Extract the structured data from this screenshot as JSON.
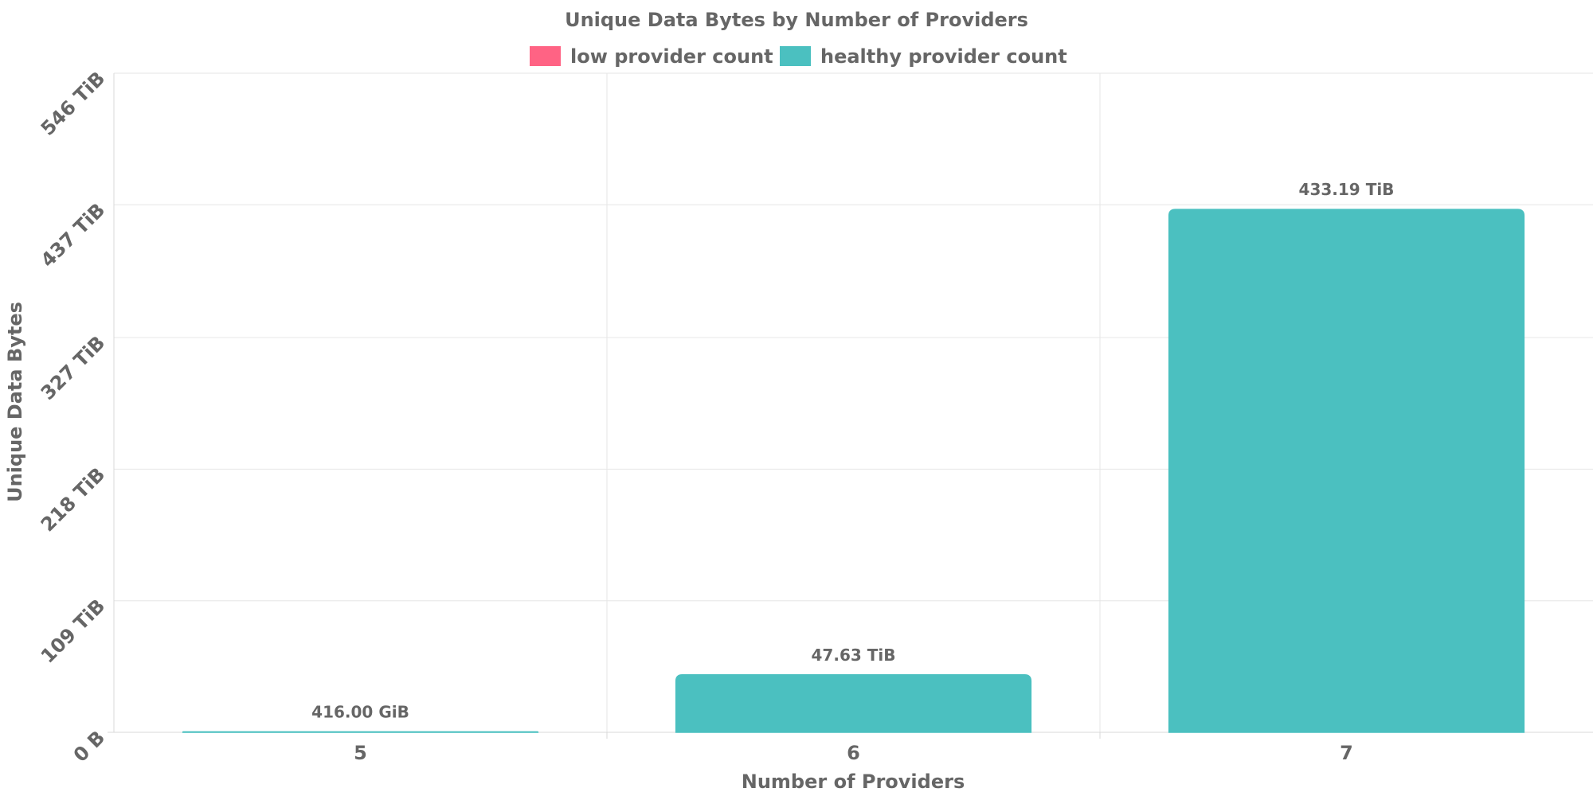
{
  "chart_data": {
    "type": "bar",
    "title": "Unique Data Bytes by Number of Providers",
    "xlabel": "Number of Providers",
    "ylabel": "Unique Data Bytes",
    "categories": [
      "5",
      "6",
      "7"
    ],
    "series": [
      {
        "name": "low provider count",
        "color": "#FF6384",
        "values": [
          0,
          0,
          0
        ]
      },
      {
        "name": "healthy provider count",
        "color": "#4BC0C0",
        "values": [
          0.406,
          47.63,
          433.19
        ]
      }
    ],
    "value_unit": "TiB",
    "data_labels": [
      "416.00 GiB",
      "47.63 TiB",
      "433.19 TiB"
    ],
    "y_ticks": [
      0,
      109,
      218,
      327,
      437,
      546
    ],
    "y_tick_labels": [
      "0 B",
      "109 TiB",
      "218 TiB",
      "327 TiB",
      "437 TiB",
      "546 TiB"
    ],
    "ylim": [
      0,
      546
    ],
    "grid": true,
    "legend_position": "top"
  }
}
